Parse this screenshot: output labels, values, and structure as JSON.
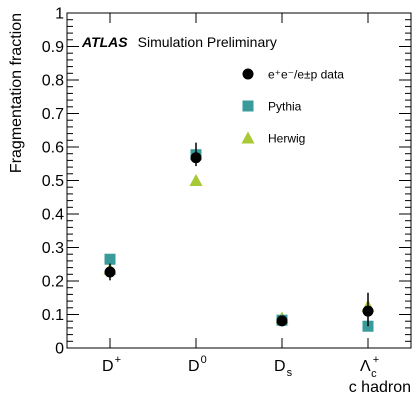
{
  "chart_data": {
    "type": "scatter",
    "title": "",
    "xlabel": "c hadron",
    "ylabel": "Fragmentation fraction",
    "ylim": [
      0,
      1
    ],
    "yticks": [
      "0",
      "0.1",
      "0.2",
      "0.3",
      "0.4",
      "0.5",
      "0.6",
      "0.7",
      "0.8",
      "0.9",
      "1"
    ],
    "categories": [
      {
        "base": "D",
        "sup": "+",
        "sub": ""
      },
      {
        "base": "D",
        "sup": "0",
        "sub": ""
      },
      {
        "base": "D",
        "sup": "",
        "sub": "s"
      },
      {
        "base": "Λ",
        "sup": "+",
        "sub": "c"
      }
    ],
    "annotation": {
      "bold": "ATLAS",
      "text": "Simulation Preliminary"
    },
    "legend_position": "top-right",
    "series": [
      {
        "name": "e⁺e⁻/e±p data",
        "marker": "circle",
        "color": "#000000",
        "values": [
          0.227,
          0.568,
          0.081,
          0.11
        ],
        "err_low": [
          0.025,
          0.025,
          0.01,
          0.045
        ],
        "err_high": [
          0.025,
          0.045,
          0.01,
          0.055
        ]
      },
      {
        "name": "Pythia",
        "marker": "square",
        "color": "#3a9b9b",
        "values": [
          0.265,
          0.577,
          0.083,
          0.065
        ]
      },
      {
        "name": "Herwig",
        "marker": "triangle",
        "color": "#a7c934",
        "values": [
          0.235,
          0.5,
          0.09,
          0.125
        ]
      }
    ]
  }
}
